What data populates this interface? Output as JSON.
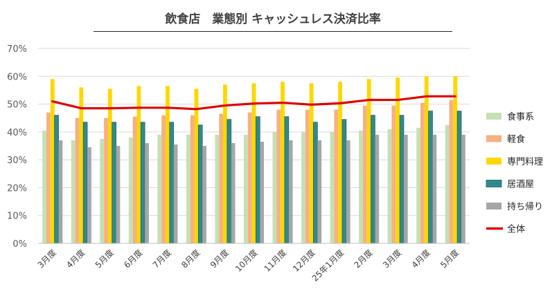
{
  "chart_data": {
    "type": "bar",
    "title": "飲食店　業態別 キャッシュレス決済比率",
    "categories": [
      "3月度",
      "4月度",
      "5月度",
      "6月度",
      "7月度",
      "8月度",
      "9月度",
      "10月度",
      "11月度",
      "12月度",
      "25年1月度",
      "2月度",
      "3月度",
      "4月度",
      "5月度"
    ],
    "ylim": [
      0,
      0.7
    ],
    "yticks": [
      "0%",
      "10%",
      "20%",
      "30%",
      "40%",
      "50%",
      "60%",
      "70%"
    ],
    "grid": true,
    "legend_position": "right",
    "series": [
      {
        "name": "食事系",
        "kind": "bar",
        "color": "#c5e0b4",
        "values": [
          0.405,
          0.37,
          0.375,
          0.38,
          0.39,
          0.39,
          0.39,
          0.39,
          0.4,
          0.4,
          0.4,
          0.405,
          0.41,
          0.415,
          0.425
        ]
      },
      {
        "name": "軽食",
        "kind": "bar",
        "color": "#f4b183",
        "values": [
          0.47,
          0.45,
          0.45,
          0.455,
          0.46,
          0.46,
          0.465,
          0.47,
          0.48,
          0.48,
          0.48,
          0.495,
          0.495,
          0.505,
          0.515
        ]
      },
      {
        "name": "専門料理",
        "kind": "bar",
        "color": "#ffd700",
        "values": [
          0.59,
          0.56,
          0.555,
          0.565,
          0.565,
          0.555,
          0.57,
          0.575,
          0.58,
          0.575,
          0.58,
          0.59,
          0.595,
          0.6,
          0.6
        ]
      },
      {
        "name": "居酒屋",
        "kind": "bar",
        "color": "#2e8b8b",
        "values": [
          0.46,
          0.435,
          0.435,
          0.435,
          0.435,
          0.425,
          0.445,
          0.455,
          0.455,
          0.435,
          0.445,
          0.46,
          0.46,
          0.475,
          0.475
        ]
      },
      {
        "name": "持ち帰り",
        "kind": "bar",
        "color": "#a6a6a6",
        "values": [
          0.37,
          0.345,
          0.35,
          0.36,
          0.355,
          0.35,
          0.36,
          0.365,
          0.37,
          0.37,
          0.37,
          0.39,
          0.39,
          0.39,
          0.39
        ]
      },
      {
        "name": "全体",
        "kind": "line",
        "color": "#e00000",
        "values": [
          0.51,
          0.485,
          0.485,
          0.487,
          0.487,
          0.482,
          0.495,
          0.502,
          0.505,
          0.498,
          0.503,
          0.515,
          0.515,
          0.528,
          0.528
        ]
      }
    ]
  }
}
